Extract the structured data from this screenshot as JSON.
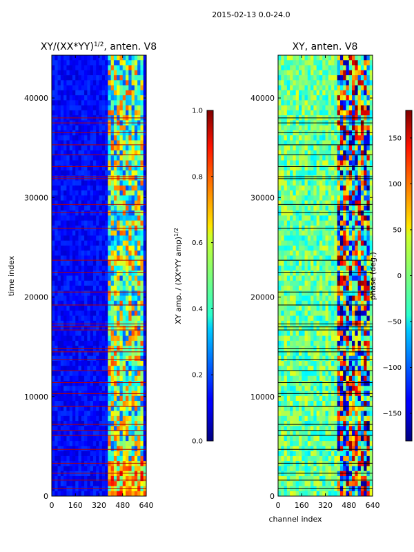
{
  "suptitle": "2015-02-13 0.0-24.0",
  "chart_data": [
    {
      "type": "heatmap",
      "title": "XY/(XX*YY)",
      "title_superscript": "1/2",
      "title_suffix": ", anten. V8",
      "xlabel": "",
      "ylabel": "time index",
      "xlim": [
        0,
        640
      ],
      "ylim": [
        0,
        44300
      ],
      "xticks": [
        0,
        160,
        320,
        480,
        640
      ],
      "yticks": [
        0,
        10000,
        20000,
        30000,
        40000
      ],
      "colorbar": {
        "label": "XY amp. / (XX*YY amp)",
        "label_superscript": "1/2",
        "range": [
          0.0,
          1.0
        ],
        "ticks": [
          "0.0",
          "0.2",
          "0.4",
          "0.6",
          "0.8",
          "1.0"
        ],
        "colormap": "jet"
      },
      "bright_channel_band": [
        385,
        625
      ],
      "flagged_rows_time_index": [
        800,
        1600,
        2300,
        3300,
        4700,
        6100,
        6600,
        7200,
        9000,
        10300,
        11400,
        12600,
        13700,
        14500,
        14800,
        16700,
        17000,
        17300,
        19200,
        20500,
        22500,
        23700,
        26900,
        28500,
        29300,
        31900,
        32100,
        33100,
        34300,
        35300,
        36500,
        37500,
        38000
      ]
    },
    {
      "type": "heatmap",
      "title": "XY, anten. V8",
      "xlabel": "channel index",
      "ylabel": "",
      "xlim": [
        0,
        640
      ],
      "ylim": [
        0,
        44300
      ],
      "xticks": [
        0,
        160,
        320,
        480,
        640
      ],
      "yticks": [
        0,
        10000,
        20000,
        30000,
        40000
      ],
      "colorbar": {
        "label": "phase (deg.)",
        "range": [
          -180,
          180
        ],
        "ticks": [
          "−150",
          "−100",
          "−50",
          "0",
          "50",
          "100",
          "150"
        ],
        "colormap": "jet"
      },
      "noisy_channel_band": [
        400,
        620
      ],
      "flagged_rows_time_index": [
        800,
        1600,
        2300,
        3300,
        4700,
        6100,
        6600,
        7200,
        9000,
        10300,
        11400,
        12600,
        13700,
        14500,
        14800,
        16700,
        17000,
        17300,
        19200,
        20500,
        22500,
        23700,
        26900,
        28500,
        29300,
        31900,
        32100,
        33100,
        34300,
        35300,
        36500,
        37500,
        38000
      ]
    }
  ]
}
